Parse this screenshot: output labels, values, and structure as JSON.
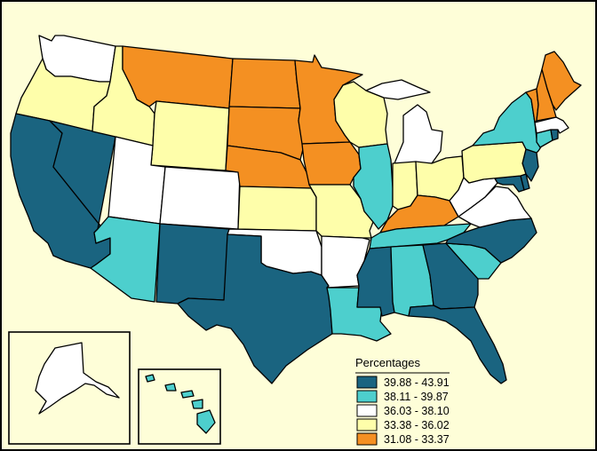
{
  "legend": {
    "title": "Percentages",
    "classes": [
      {
        "label": "39.88 - 43.91",
        "color": "#1a6480"
      },
      {
        "label": "38.11 - 39.87",
        "color": "#4dcfcd"
      },
      {
        "label": "36.03 - 38.10",
        "color": "#ffffff"
      },
      {
        "label": "33.38 - 36.02",
        "color": "#fefeaa"
      },
      {
        "label": "31.08 - 33.37",
        "color": "#f49022"
      }
    ]
  },
  "states": [
    {
      "name": "Washington",
      "class": 2
    },
    {
      "name": "Oregon",
      "class": 3
    },
    {
      "name": "California",
      "class": 0
    },
    {
      "name": "Nevada",
      "class": 0
    },
    {
      "name": "Idaho",
      "class": 3
    },
    {
      "name": "Montana",
      "class": 4
    },
    {
      "name": "Wyoming",
      "class": 3
    },
    {
      "name": "Utah",
      "class": 2
    },
    {
      "name": "Colorado",
      "class": 2
    },
    {
      "name": "Arizona",
      "class": 1
    },
    {
      "name": "New Mexico",
      "class": 0
    },
    {
      "name": "North Dakota",
      "class": 4
    },
    {
      "name": "South Dakota",
      "class": 4
    },
    {
      "name": "Nebraska",
      "class": 4
    },
    {
      "name": "Kansas",
      "class": 3
    },
    {
      "name": "Oklahoma",
      "class": 2
    },
    {
      "name": "Texas",
      "class": 0
    },
    {
      "name": "Minnesota",
      "class": 4
    },
    {
      "name": "Iowa",
      "class": 4
    },
    {
      "name": "Missouri",
      "class": 3
    },
    {
      "name": "Arkansas",
      "class": 2
    },
    {
      "name": "Louisiana",
      "class": 1
    },
    {
      "name": "Wisconsin",
      "class": 3
    },
    {
      "name": "Illinois",
      "class": 1
    },
    {
      "name": "Michigan",
      "class": 2
    },
    {
      "name": "Indiana",
      "class": 3
    },
    {
      "name": "Ohio",
      "class": 3
    },
    {
      "name": "Kentucky",
      "class": 4
    },
    {
      "name": "Tennessee",
      "class": 1
    },
    {
      "name": "Mississippi",
      "class": 0
    },
    {
      "name": "Alabama",
      "class": 1
    },
    {
      "name": "Georgia",
      "class": 0
    },
    {
      "name": "Florida",
      "class": 0
    },
    {
      "name": "South Carolina",
      "class": 1
    },
    {
      "name": "North Carolina",
      "class": 0
    },
    {
      "name": "Virginia",
      "class": 2
    },
    {
      "name": "West Virginia",
      "class": 2
    },
    {
      "name": "Maryland",
      "class": 0
    },
    {
      "name": "Delaware",
      "class": 0
    },
    {
      "name": "New Jersey",
      "class": 0
    },
    {
      "name": "Pennsylvania",
      "class": 3
    },
    {
      "name": "New York",
      "class": 1
    },
    {
      "name": "Connecticut",
      "class": 1
    },
    {
      "name": "Rhode Island",
      "class": 0
    },
    {
      "name": "Massachusetts",
      "class": 2
    },
    {
      "name": "Vermont",
      "class": 4
    },
    {
      "name": "New Hampshire",
      "class": 4
    },
    {
      "name": "Maine",
      "class": 4
    },
    {
      "name": "Alaska",
      "class": 2
    },
    {
      "name": "Hawaii",
      "class": 1
    }
  ]
}
